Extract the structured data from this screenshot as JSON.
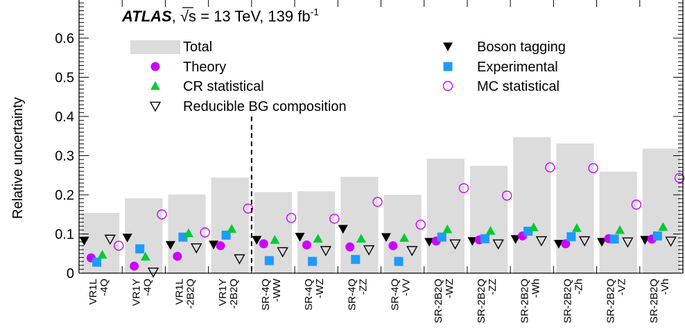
{
  "chart_data": {
    "type": "bar",
    "annotation": {
      "experiment": "ATLAS",
      "energy_text": "√s = 13 TeV, 139 fb",
      "lumi_exponent": "-1"
    },
    "ylabel": "Relative uncertainty",
    "ylim": [
      0,
      0.7
    ],
    "yticks": [
      0,
      0.1,
      0.2,
      0.3,
      0.4,
      0.5,
      0.6
    ],
    "ytick_labels": [
      "0",
      "0.1",
      "0.2",
      "0.3",
      "0.4",
      "0.5",
      "0.6"
    ],
    "categories": [
      [
        "VR1L",
        "-4Q"
      ],
      [
        "VR1Y",
        "-4Q"
      ],
      [
        "VR1L",
        "-2B2Q"
      ],
      [
        "VR1Y",
        "-2B2Q"
      ],
      [
        "SR-4Q",
        "-WW"
      ],
      [
        "SR-4Q",
        "-WZ"
      ],
      [
        "SR-4Q",
        "-ZZ"
      ],
      [
        "SR-4Q",
        "-VV"
      ],
      [
        "SR-2B2Q",
        "-WZ"
      ],
      [
        "SR-2B2Q",
        "-ZZ"
      ],
      [
        "SR-2B2Q",
        "-Wh"
      ],
      [
        "SR-2B2Q",
        "-Zh"
      ],
      [
        "SR-2B2Q",
        "-VZ"
      ],
      [
        "SR-2B2Q",
        "-Vh"
      ]
    ],
    "divider_after_index": 3,
    "series": [
      {
        "name": "Total",
        "marker": "bar",
        "color": "#dcdcdc",
        "values": [
          0.154,
          0.191,
          0.201,
          0.244,
          0.207,
          0.209,
          0.246,
          0.2,
          0.292,
          0.274,
          0.347,
          0.331,
          0.259,
          0.318
        ]
      },
      {
        "name": "Boson tagging",
        "marker": "triangle-down-filled",
        "color": "#000000",
        "values": [
          0.083,
          0.091,
          0.072,
          0.073,
          0.085,
          0.093,
          0.113,
          0.092,
          0.08,
          0.082,
          0.087,
          0.075,
          0.08,
          0.085
        ]
      },
      {
        "name": "Theory",
        "marker": "circle-filled",
        "color": "#cc00ff",
        "values": [
          0.039,
          0.018,
          0.043,
          0.07,
          0.075,
          0.072,
          0.067,
          0.07,
          0.082,
          0.085,
          0.095,
          0.075,
          0.088,
          0.087
        ]
      },
      {
        "name": "Experimental",
        "marker": "square-filled",
        "color": "#1f9aff",
        "values": [
          0.028,
          0.062,
          0.092,
          0.097,
          0.032,
          0.03,
          0.035,
          0.03,
          0.092,
          0.088,
          0.107,
          0.093,
          0.087,
          0.095
        ]
      },
      {
        "name": "CR statistical",
        "marker": "triangle-up-filled",
        "color": "#00cc33",
        "values": [
          0.047,
          0.042,
          0.102,
          0.113,
          0.085,
          0.088,
          0.088,
          0.09,
          0.112,
          0.108,
          0.117,
          0.115,
          0.11,
          0.118
        ]
      },
      {
        "name": "MC statistical",
        "marker": "circle-open",
        "color": "#cc00ff",
        "values": [
          0.07,
          0.15,
          0.104,
          0.165,
          0.141,
          0.139,
          0.182,
          0.124,
          0.217,
          0.198,
          0.27,
          0.268,
          0.175,
          0.243
        ]
      },
      {
        "name": "Reducible BG composition",
        "marker": "triangle-down-open",
        "color": "#000000",
        "values": [
          0.087,
          0.003,
          0.065,
          0.037,
          0.055,
          0.058,
          0.06,
          0.058,
          0.075,
          0.075,
          0.083,
          0.083,
          0.08,
          0.082
        ]
      }
    ],
    "legend": {
      "left": [
        "Total",
        "Theory",
        "CR statistical",
        "Reducible BG composition"
      ],
      "right": [
        "Boson tagging",
        "Experimental",
        "MC statistical"
      ]
    }
  }
}
